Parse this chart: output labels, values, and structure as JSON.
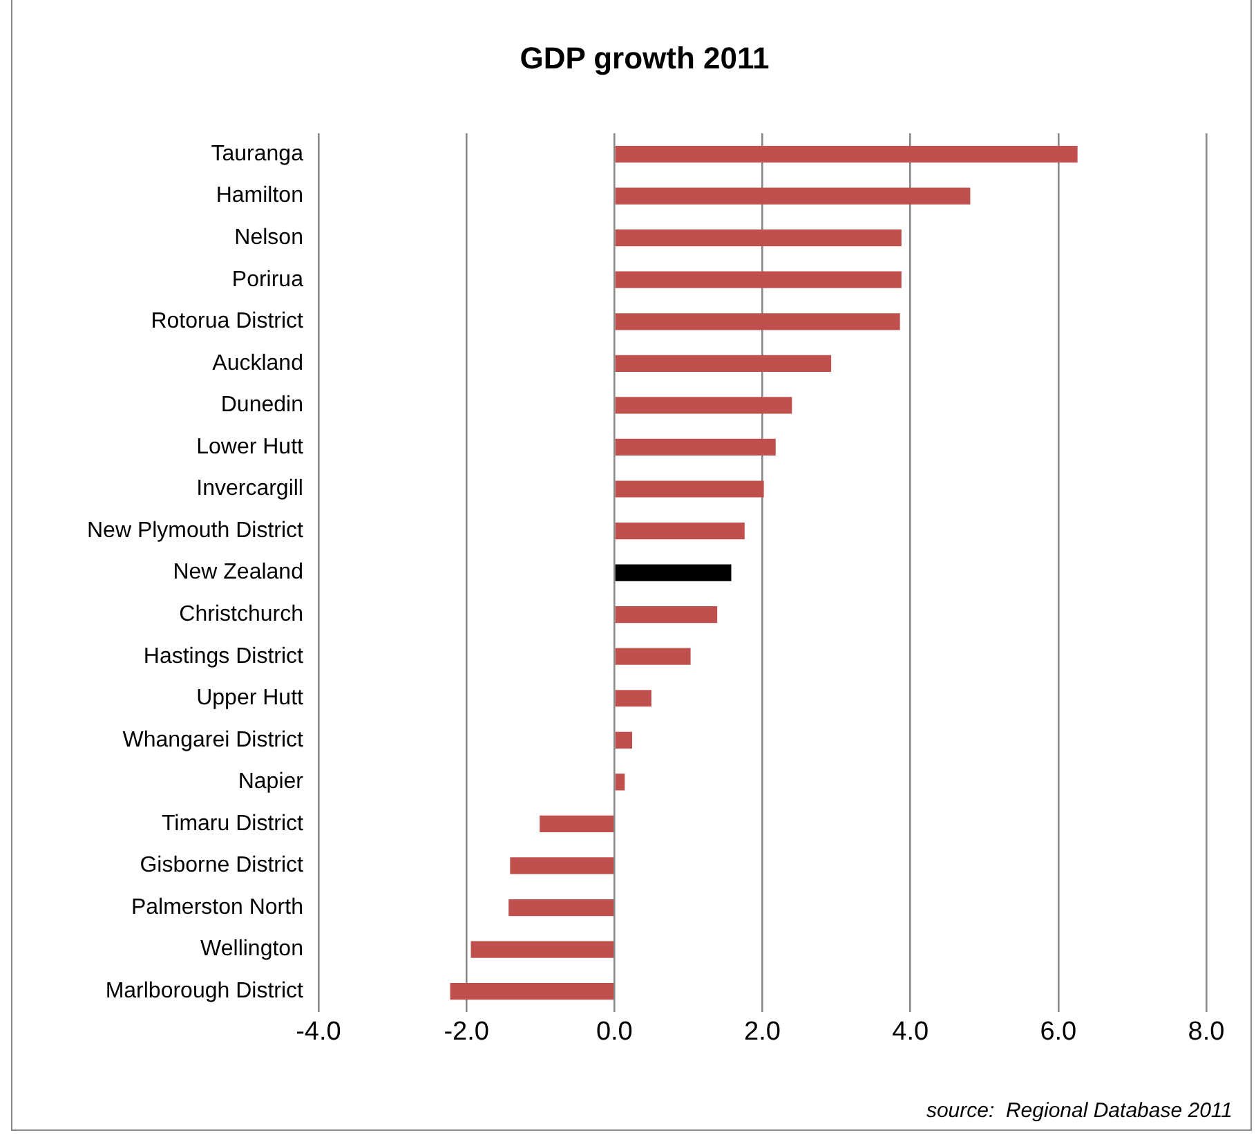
{
  "chart_data": {
    "type": "bar",
    "orientation": "horizontal",
    "title": "GDP growth 2011",
    "categories": [
      "Tauranga",
      "Hamilton",
      "Nelson",
      "Porirua",
      "Rotorua District",
      "Auckland",
      "Dunedin",
      "Lower Hutt",
      "Invercargill",
      "New Plymouth District",
      "New Zealand",
      "Christchurch",
      "Hastings District",
      "Upper Hutt",
      "Whangarei District",
      "Napier",
      "Timaru District",
      "Gisborne District",
      "Palmerston North",
      "Wellington",
      "Marlborough District"
    ],
    "values": [
      6.26,
      4.81,
      3.88,
      3.88,
      3.86,
      2.93,
      2.4,
      2.18,
      2.02,
      1.76,
      1.58,
      1.39,
      1.03,
      0.5,
      0.24,
      0.14,
      -1.01,
      -1.41,
      -1.43,
      -1.94,
      -2.22
    ],
    "colors": [
      "#c0504d",
      "#c0504d",
      "#c0504d",
      "#c0504d",
      "#c0504d",
      "#c0504d",
      "#c0504d",
      "#c0504d",
      "#c0504d",
      "#c0504d",
      "#000000",
      "#c0504d",
      "#c0504d",
      "#c0504d",
      "#c0504d",
      "#c0504d",
      "#c0504d",
      "#c0504d",
      "#c0504d",
      "#c0504d",
      "#c0504d"
    ],
    "xlim": [
      -4,
      8
    ],
    "xticks": [
      {
        "value": -4,
        "label": "-4.0"
      },
      {
        "value": -2,
        "label": "-2.0"
      },
      {
        "value": 0,
        "label": "0.0"
      },
      {
        "value": 2,
        "label": "2.0"
      },
      {
        "value": 4,
        "label": "4.0"
      },
      {
        "value": 6,
        "label": "6.0"
      },
      {
        "value": 8,
        "label": "8.0"
      }
    ],
    "grid": "x",
    "legend": false,
    "annotations": [
      "source:  Regional Database 2011"
    ]
  }
}
